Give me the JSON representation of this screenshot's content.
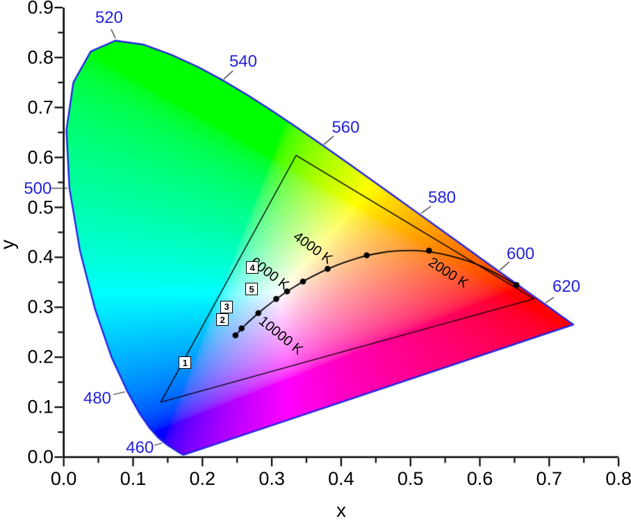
{
  "figure": {
    "description": "CIE 1931 xy chromaticity diagram with Planckian (black-body) locus, color temperature labels, an RGB gamut triangle and five numbered sample points"
  },
  "axes": {
    "x": {
      "title": "x",
      "min": 0,
      "max": 0.8,
      "major_tick_step": 0.1,
      "minor_tick_step": 0.05,
      "tick_labels": [
        "0.0",
        "0.1",
        "0.2",
        "0.3",
        "0.4",
        "0.5",
        "0.6",
        "0.7",
        "0.8"
      ]
    },
    "y": {
      "title": "y",
      "min": 0,
      "max": 0.9,
      "major_tick_step": 0.1,
      "minor_tick_step": 0.05,
      "tick_labels": [
        "0.0",
        "0.1",
        "0.2",
        "0.3",
        "0.4",
        "0.5",
        "0.6",
        "0.7",
        "0.8",
        "0.9"
      ]
    }
  },
  "colors": {
    "background": "#ffffff",
    "wavelength_label": "#2222dd",
    "locus_outline": "#2424e6",
    "annotation": "#000000",
    "leader_line": "#222222"
  },
  "chart_data": {
    "type": "area",
    "title": "",
    "xlabel": "x",
    "ylabel": "y",
    "xlim": [
      0,
      0.8
    ],
    "ylim": [
      0,
      0.9
    ],
    "grid": false,
    "spectral_locus_xy": [
      [
        380,
        0.1741,
        0.005
      ],
      [
        385,
        0.174,
        0.005
      ],
      [
        390,
        0.1738,
        0.0049
      ],
      [
        395,
        0.1736,
        0.0049
      ],
      [
        400,
        0.1733,
        0.0048
      ],
      [
        405,
        0.173,
        0.0048
      ],
      [
        410,
        0.1726,
        0.0048
      ],
      [
        415,
        0.1721,
        0.0048
      ],
      [
        420,
        0.1714,
        0.0051
      ],
      [
        425,
        0.1703,
        0.0058
      ],
      [
        430,
        0.1689,
        0.0069
      ],
      [
        435,
        0.1669,
        0.0086
      ],
      [
        440,
        0.1644,
        0.0109
      ],
      [
        445,
        0.1611,
        0.0138
      ],
      [
        450,
        0.1566,
        0.0177
      ],
      [
        455,
        0.151,
        0.0227
      ],
      [
        460,
        0.144,
        0.0297
      ],
      [
        465,
        0.1355,
        0.0399
      ],
      [
        470,
        0.1241,
        0.0578
      ],
      [
        475,
        0.1096,
        0.0868
      ],
      [
        480,
        0.0913,
        0.1327
      ],
      [
        485,
        0.0687,
        0.2007
      ],
      [
        490,
        0.0454,
        0.295
      ],
      [
        495,
        0.0235,
        0.4127
      ],
      [
        500,
        0.0082,
        0.5384
      ],
      [
        505,
        0.0039,
        0.6548
      ],
      [
        510,
        0.0139,
        0.7502
      ],
      [
        515,
        0.0389,
        0.812
      ],
      [
        520,
        0.0743,
        0.8338
      ],
      [
        525,
        0.1142,
        0.8262
      ],
      [
        530,
        0.1547,
        0.8059
      ],
      [
        535,
        0.1929,
        0.7816
      ],
      [
        540,
        0.2296,
        0.7543
      ],
      [
        545,
        0.2658,
        0.7243
      ],
      [
        550,
        0.3016,
        0.6923
      ],
      [
        555,
        0.3373,
        0.6589
      ],
      [
        560,
        0.3731,
        0.6245
      ],
      [
        565,
        0.4087,
        0.5896
      ],
      [
        570,
        0.4441,
        0.5547
      ],
      [
        575,
        0.4788,
        0.5202
      ],
      [
        580,
        0.5125,
        0.4866
      ],
      [
        585,
        0.5448,
        0.4544
      ],
      [
        590,
        0.5752,
        0.4242
      ],
      [
        595,
        0.6029,
        0.3965
      ],
      [
        600,
        0.627,
        0.3725
      ],
      [
        605,
        0.6482,
        0.3514
      ],
      [
        610,
        0.6658,
        0.334
      ],
      [
        615,
        0.6801,
        0.3197
      ],
      [
        620,
        0.6915,
        0.3083
      ],
      [
        625,
        0.7006,
        0.2993
      ],
      [
        630,
        0.7079,
        0.292
      ],
      [
        635,
        0.714,
        0.2859
      ],
      [
        640,
        0.719,
        0.2809
      ],
      [
        645,
        0.723,
        0.277
      ],
      [
        650,
        0.726,
        0.274
      ],
      [
        655,
        0.7283,
        0.2717
      ],
      [
        660,
        0.73,
        0.27
      ],
      [
        665,
        0.7311,
        0.2689
      ],
      [
        670,
        0.732,
        0.268
      ],
      [
        675,
        0.7327,
        0.2673
      ],
      [
        680,
        0.7334,
        0.2666
      ],
      [
        685,
        0.734,
        0.266
      ],
      [
        690,
        0.7344,
        0.2656
      ],
      [
        695,
        0.7346,
        0.2654
      ],
      [
        700,
        0.7347,
        0.2653
      ]
    ],
    "wavelength_labels": [
      {
        "text": "460",
        "x": 0.1098,
        "y": 0.0185,
        "leader": [
          [
            0.1306,
            0.0236
          ],
          [
            0.1416,
            0.0278
          ]
        ]
      },
      {
        "text": "480",
        "x": 0.0484,
        "y": 0.1172,
        "leader": [
          [
            0.0714,
            0.1252
          ],
          [
            0.0885,
            0.1307
          ]
        ]
      },
      {
        "text": "500",
        "x": -0.0374,
        "y": 0.5362,
        "leader": [
          [
            -0.0187,
            0.5382
          ],
          [
            0.0053,
            0.5382
          ]
        ]
      },
      {
        "text": "520",
        "x": 0.0654,
        "y": 0.879,
        "leader": [
          [
            0.0684,
            0.8568
          ],
          [
            0.0744,
            0.8387
          ]
        ]
      },
      {
        "text": "540",
        "x": 0.2588,
        "y": 0.7914,
        "leader": [
          [
            0.2438,
            0.7733
          ],
          [
            0.2308,
            0.7566
          ]
        ]
      },
      {
        "text": "560",
        "x": 0.4066,
        "y": 0.6593,
        "leader": [
          [
            0.3891,
            0.6426
          ],
          [
            0.3751,
            0.6259
          ]
        ]
      },
      {
        "text": "580",
        "x": 0.5454,
        "y": 0.5188,
        "leader": [
          [
            0.5294,
            0.5021
          ],
          [
            0.5153,
            0.4882
          ]
        ]
      },
      {
        "text": "600",
        "x": 0.6587,
        "y": 0.4061,
        "leader": [
          [
            0.6426,
            0.3908
          ],
          [
            0.6286,
            0.3741
          ]
        ]
      },
      {
        "text": "620",
        "x": 0.7248,
        "y": 0.3408,
        "leader": [
          [
            0.7067,
            0.3199
          ],
          [
            0.6947,
            0.3088
          ]
        ]
      }
    ],
    "gamut_triangle": [
      [
        0.14,
        0.11
      ],
      [
        0.335,
        0.604
      ],
      [
        0.678,
        0.317
      ]
    ],
    "planckian_curve": [
      [
        0.2476,
        0.2437
      ],
      [
        0.2565,
        0.2577
      ],
      [
        0.266,
        0.27
      ],
      [
        0.2806,
        0.2883
      ],
      [
        0.2952,
        0.3048
      ],
      [
        0.3064,
        0.3166
      ],
      [
        0.3221,
        0.3318
      ],
      [
        0.3451,
        0.3516
      ],
      [
        0.3608,
        0.3636
      ],
      [
        0.3805,
        0.3768
      ],
      [
        0.4053,
        0.3907
      ],
      [
        0.4369,
        0.4041
      ],
      [
        0.477,
        0.4137
      ],
      [
        0.5267,
        0.4133
      ],
      [
        0.5857,
        0.3931
      ],
      [
        0.625,
        0.367
      ],
      [
        0.6528,
        0.3444
      ]
    ],
    "planckian_dots": [
      [
        0.2476,
        0.2437
      ],
      [
        0.2565,
        0.2577
      ],
      [
        0.2806,
        0.2883
      ],
      [
        0.3064,
        0.3166
      ],
      [
        0.3221,
        0.3318
      ],
      [
        0.3451,
        0.3516
      ],
      [
        0.3805,
        0.3768
      ],
      [
        0.4369,
        0.4041
      ],
      [
        0.5267,
        0.4133
      ],
      [
        0.6528,
        0.3444
      ]
    ],
    "temperature_labels": [
      {
        "text": "2000 K",
        "x": 0.554,
        "y": 0.369,
        "angle_deg": 33
      },
      {
        "text": "4000 K",
        "x": 0.359,
        "y": 0.418,
        "angle_deg": 36
      },
      {
        "text": "6000 K",
        "x": 0.297,
        "y": 0.367,
        "angle_deg": 37
      },
      {
        "text": "10000 K",
        "x": 0.313,
        "y": 0.243,
        "angle_deg": 39
      }
    ],
    "sample_points": [
      {
        "label": "1",
        "x": 0.175,
        "y": 0.189
      },
      {
        "label": "2",
        "x": 0.229,
        "y": 0.275
      },
      {
        "label": "3",
        "x": 0.235,
        "y": 0.301
      },
      {
        "label": "4",
        "x": 0.272,
        "y": 0.379
      },
      {
        "label": "5",
        "x": 0.271,
        "y": 0.336
      }
    ]
  }
}
